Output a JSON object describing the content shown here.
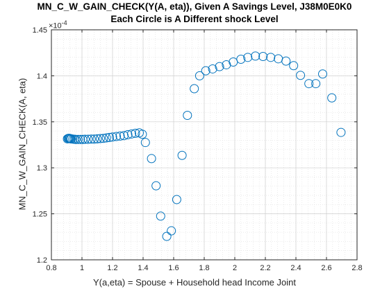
{
  "chart_data": {
    "type": "scatter",
    "title": "MN_C_W_GAIN_CHECK(Y(A, eta)), Given A Savings Level, J38M0E0K0",
    "subtitle": "Each Circle is A Different shock Level",
    "xlabel": "Y(a,eta) = Spouse + Household head Income Joint",
    "ylabel": "MN_C_W_GAIN_CHECK(A, eta)",
    "y_exponent_base": "×10",
    "y_exponent": "-4",
    "xlim": [
      0.8,
      2.8
    ],
    "ylim": [
      1.2,
      1.45
    ],
    "x_ticks": [
      0.8,
      1,
      1.2,
      1.4,
      1.6,
      1.8,
      2,
      2.2,
      2.4,
      2.6,
      2.8
    ],
    "x_tick_labels": [
      "0.8",
      "1",
      "1.2",
      "1.4",
      "1.6",
      "1.8",
      "2",
      "2.2",
      "2.4",
      "2.6",
      "2.8"
    ],
    "y_ticks": [
      1.2,
      1.25,
      1.3,
      1.35,
      1.4,
      1.45
    ],
    "y_tick_labels": [
      "1.2",
      "1.25",
      "1.3",
      "1.35",
      "1.4",
      "1.45"
    ],
    "grid": "major and minor dotted",
    "marker": "open circle",
    "color": "#0072BD",
    "points": {
      "x": [
        0.905,
        0.91,
        0.915,
        0.92,
        0.925,
        0.93,
        0.94,
        0.95,
        0.96,
        0.975,
        0.99,
        1.005,
        1.02,
        1.04,
        1.06,
        1.08,
        1.1,
        1.12,
        1.14,
        1.16,
        1.18,
        1.2,
        1.225,
        1.25,
        1.275,
        1.3,
        1.325,
        1.35,
        1.375,
        1.395,
        1.415,
        1.455,
        1.485,
        1.515,
        1.555,
        1.585,
        1.62,
        1.655,
        1.69,
        1.735,
        1.77,
        1.81,
        1.855,
        1.9,
        1.945,
        1.99,
        2.04,
        2.085,
        2.135,
        2.185,
        2.235,
        2.285,
        2.335,
        2.385,
        2.43,
        2.485,
        2.53,
        2.575,
        2.635,
        2.695
      ],
      "y": [
        1.3315,
        1.332,
        1.332,
        1.332,
        1.3315,
        1.3315,
        1.3312,
        1.331,
        1.3308,
        1.3308,
        1.3308,
        1.3308,
        1.331,
        1.331,
        1.3312,
        1.3312,
        1.3315,
        1.3318,
        1.332,
        1.3325,
        1.333,
        1.3335,
        1.334,
        1.3345,
        1.335,
        1.336,
        1.3368,
        1.3375,
        1.338,
        1.3365,
        1.3275,
        1.31,
        1.2805,
        1.2475,
        1.2255,
        1.2315,
        1.2655,
        1.3135,
        1.357,
        1.386,
        1.4,
        1.4055,
        1.4075,
        1.41,
        1.412,
        1.415,
        1.418,
        1.42,
        1.4215,
        1.421,
        1.42,
        1.4185,
        1.416,
        1.411,
        1.4005,
        1.3915,
        1.3915,
        1.402,
        1.376,
        1.3385
      ]
    }
  }
}
